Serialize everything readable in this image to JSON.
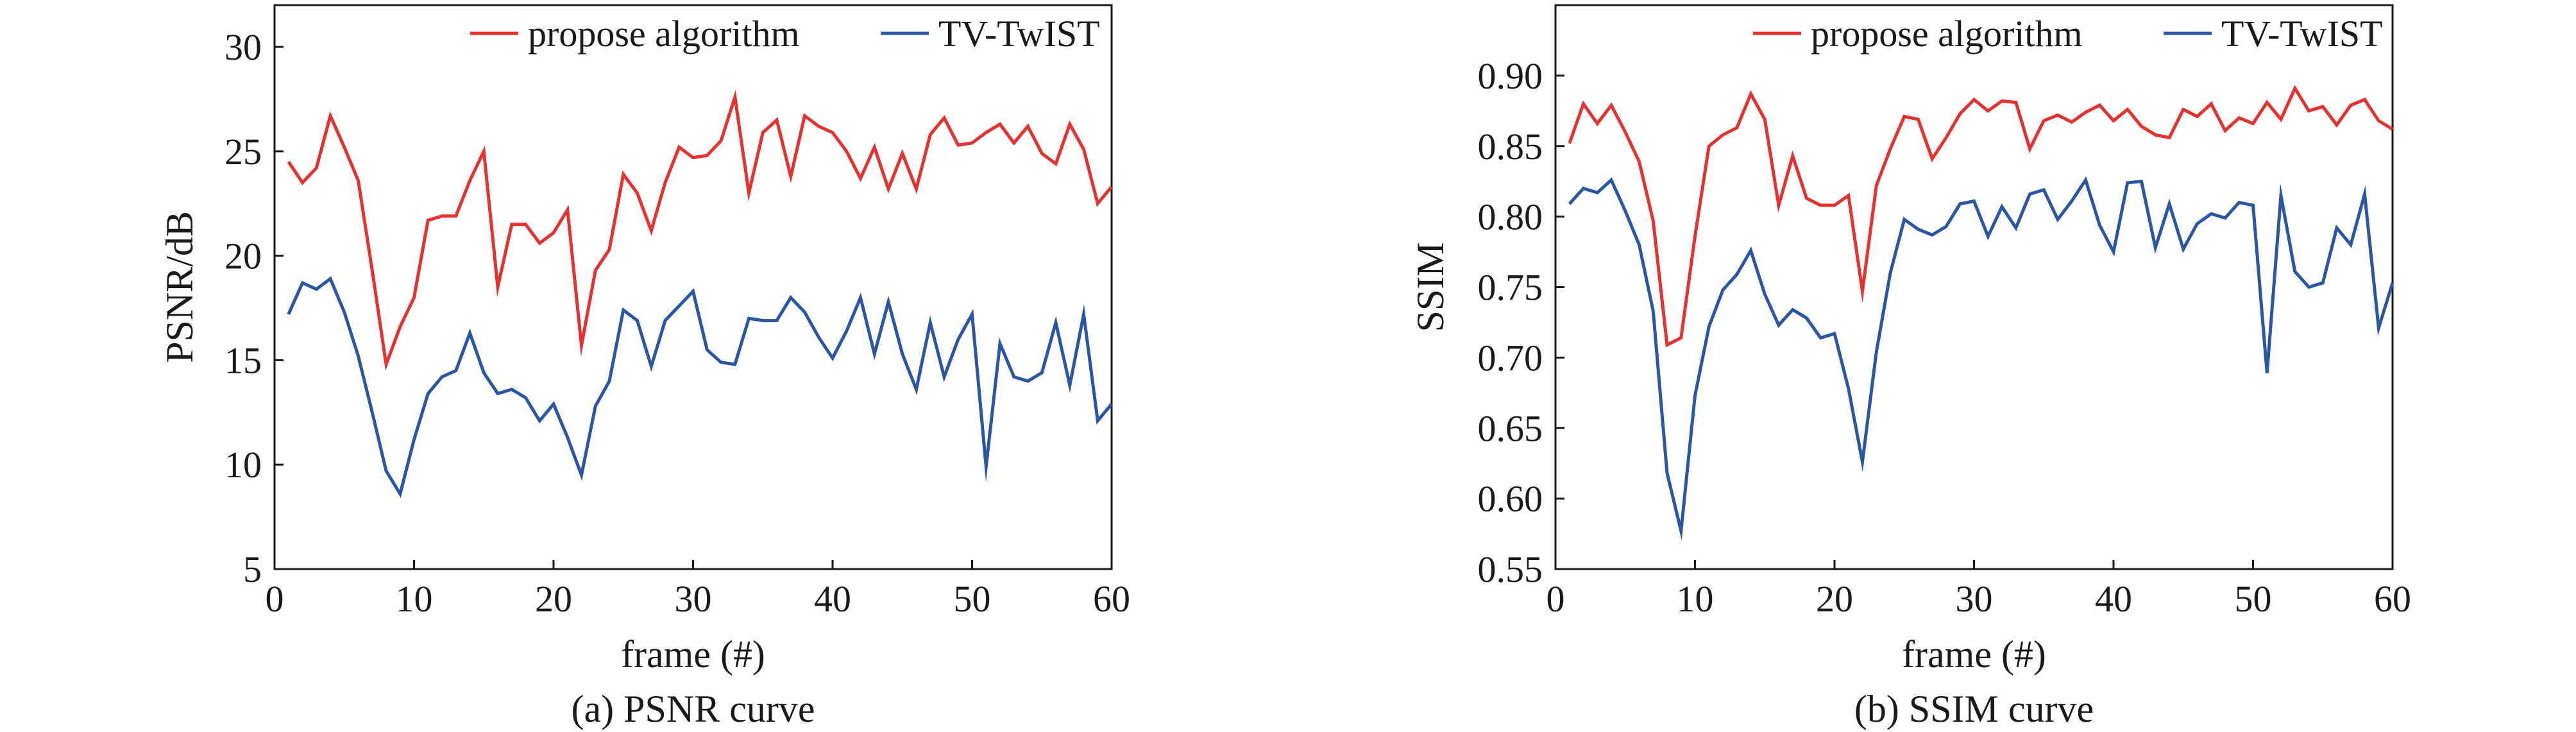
{
  "chart_data": [
    {
      "type": "line",
      "caption": "(a) PSNR curve",
      "xlabel": "frame (#)",
      "ylabel": "PSNR/dB",
      "xlim": [
        0,
        60
      ],
      "ylim": [
        5,
        32
      ],
      "xticks": [
        0,
        10,
        20,
        30,
        40,
        50,
        60
      ],
      "yticks": [
        5,
        10,
        15,
        20,
        25,
        30
      ],
      "xtick_labels": [
        "0",
        "10",
        "20",
        "30",
        "40",
        "50",
        "60"
      ],
      "ytick_labels": [
        "5",
        "10",
        "15",
        "20",
        "25",
        "30"
      ],
      "grid": false,
      "legend": "top-right",
      "x": [
        1,
        2,
        3,
        4,
        5,
        6,
        7,
        8,
        9,
        10,
        11,
        12,
        13,
        14,
        15,
        16,
        17,
        18,
        19,
        20,
        21,
        22,
        23,
        24,
        25,
        26,
        27,
        28,
        29,
        30,
        31,
        32,
        33,
        34,
        35,
        36,
        37,
        38,
        39,
        40,
        41,
        42,
        43,
        44,
        45,
        46,
        47,
        48,
        49,
        50,
        51,
        52,
        53,
        54,
        55,
        56,
        57,
        58,
        59,
        60
      ],
      "series": [
        {
          "name": "propose algorithm",
          "color": "#e8312f",
          "values": [
            24.5,
            23.5,
            24.2,
            26.7,
            25.2,
            23.6,
            19.3,
            14.8,
            16.6,
            18.0,
            21.7,
            21.9,
            21.9,
            23.6,
            25.0,
            18.5,
            21.5,
            21.5,
            20.6,
            21.1,
            22.2,
            15.7,
            19.3,
            20.3,
            23.9,
            23.0,
            21.2,
            23.5,
            25.2,
            24.7,
            24.8,
            25.5,
            27.6,
            23.0,
            25.9,
            26.5,
            23.8,
            26.7,
            26.2,
            25.9,
            25.0,
            23.7,
            25.2,
            23.2,
            24.9,
            23.2,
            25.8,
            26.6,
            25.3,
            25.4,
            25.9,
            26.3,
            25.4,
            26.2,
            24.9,
            24.4,
            26.3,
            25.1,
            22.5,
            23.3
          ]
        },
        {
          "name": "TV-TwIST",
          "color": "#2b56a5",
          "values": [
            17.2,
            18.7,
            18.4,
            18.9,
            17.3,
            15.2,
            12.5,
            9.7,
            8.6,
            11.2,
            13.4,
            14.2,
            14.5,
            16.3,
            14.4,
            13.4,
            13.6,
            13.2,
            12.1,
            12.9,
            11.3,
            9.5,
            12.8,
            14.0,
            17.4,
            16.9,
            14.7,
            16.9,
            17.6,
            18.3,
            15.5,
            14.9,
            14.8,
            17.0,
            16.9,
            16.9,
            18.0,
            17.3,
            16.1,
            15.1,
            16.4,
            18.0,
            15.3,
            17.8,
            15.3,
            13.6,
            16.8,
            14.2,
            16.0,
            17.2,
            9.9,
            15.8,
            14.2,
            14.0,
            14.4,
            16.8,
            13.8,
            17.2,
            12.1,
            12.9
          ]
        }
      ]
    },
    {
      "type": "line",
      "caption": "(b) SSIM curve",
      "xlabel": "frame (#)",
      "ylabel": "SSIM",
      "xlim": [
        0,
        60
      ],
      "ylim": [
        0.55,
        0.95
      ],
      "xticks": [
        0,
        10,
        20,
        30,
        40,
        50,
        60
      ],
      "yticks": [
        0.55,
        0.6,
        0.65,
        0.7,
        0.75,
        0.8,
        0.85,
        0.9
      ],
      "xtick_labels": [
        "0",
        "10",
        "20",
        "30",
        "40",
        "50",
        "60"
      ],
      "ytick_labels": [
        "0.55",
        "0.60",
        "0.65",
        "0.70",
        "0.75",
        "0.80",
        "0.85",
        "0.90"
      ],
      "grid": false,
      "legend": "top-right",
      "x": [
        1,
        2,
        3,
        4,
        5,
        6,
        7,
        8,
        9,
        10,
        11,
        12,
        13,
        14,
        15,
        16,
        17,
        18,
        19,
        20,
        21,
        22,
        23,
        24,
        25,
        26,
        27,
        28,
        29,
        30,
        31,
        32,
        33,
        34,
        35,
        36,
        37,
        38,
        39,
        40,
        41,
        42,
        43,
        44,
        45,
        46,
        47,
        48,
        49,
        50,
        51,
        52,
        53,
        54,
        55,
        56,
        57,
        58,
        59,
        60
      ],
      "series": [
        {
          "name": "propose algorithm",
          "color": "#e8312f",
          "values": [
            0.852,
            0.88,
            0.866,
            0.879,
            0.86,
            0.839,
            0.797,
            0.709,
            0.714,
            0.786,
            0.85,
            0.858,
            0.863,
            0.887,
            0.869,
            0.808,
            0.843,
            0.813,
            0.808,
            0.808,
            0.815,
            0.747,
            0.822,
            0.848,
            0.871,
            0.869,
            0.841,
            0.856,
            0.873,
            0.883,
            0.875,
            0.882,
            0.881,
            0.848,
            0.868,
            0.872,
            0.867,
            0.874,
            0.879,
            0.868,
            0.876,
            0.864,
            0.858,
            0.856,
            0.876,
            0.871,
            0.88,
            0.861,
            0.87,
            0.866,
            0.881,
            0.869,
            0.891,
            0.875,
            0.878,
            0.865,
            0.879,
            0.883,
            0.868,
            0.862
          ]
        },
        {
          "name": "TV-TwIST",
          "color": "#2b56a5",
          "values": [
            0.809,
            0.82,
            0.817,
            0.826,
            0.804,
            0.78,
            0.733,
            0.618,
            0.577,
            0.673,
            0.722,
            0.748,
            0.759,
            0.776,
            0.745,
            0.723,
            0.734,
            0.728,
            0.714,
            0.717,
            0.678,
            0.626,
            0.704,
            0.76,
            0.798,
            0.791,
            0.787,
            0.793,
            0.809,
            0.811,
            0.786,
            0.807,
            0.792,
            0.816,
            0.819,
            0.798,
            0.811,
            0.826,
            0.794,
            0.775,
            0.824,
            0.825,
            0.778,
            0.809,
            0.777,
            0.795,
            0.802,
            0.799,
            0.81,
            0.808,
            0.689,
            0.815,
            0.761,
            0.75,
            0.753,
            0.792,
            0.78,
            0.816,
            0.721,
            0.753
          ]
        }
      ]
    }
  ]
}
